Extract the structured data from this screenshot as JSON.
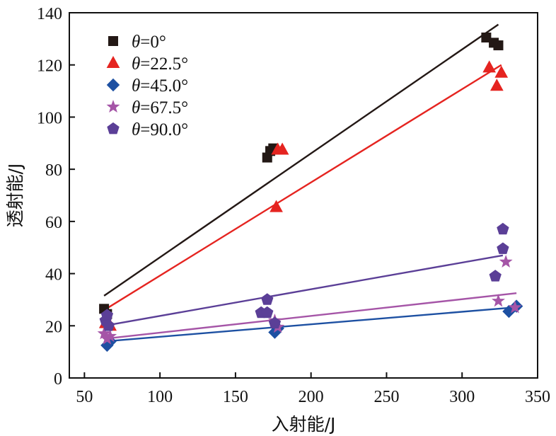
{
  "chart_data": {
    "type": "scatter",
    "xlabel": "入射能/J",
    "ylabel": "透射能/J",
    "xlim": [
      40,
      350
    ],
    "ylim": [
      0,
      140
    ],
    "x_ticks": [
      50,
      100,
      150,
      200,
      250,
      300,
      350
    ],
    "y_ticks": [
      0,
      20,
      40,
      60,
      80,
      100,
      120,
      140
    ],
    "grid": false,
    "legend_position": "top-left",
    "series": [
      {
        "name": "θ=0°",
        "legend_symbol": "θ",
        "legend_value": "=0°",
        "marker": "square",
        "color": "#231815",
        "points": [
          [
            63,
            26.5
          ],
          [
            65,
            24.5
          ],
          [
            171,
            84.5
          ],
          [
            173,
            87
          ],
          [
            175,
            88
          ],
          [
            316,
            130.5
          ],
          [
            321,
            128.5
          ],
          [
            324,
            127.5
          ]
        ],
        "fit_line": [
          [
            63,
            31.5
          ],
          [
            324,
            135.5
          ]
        ]
      },
      {
        "name": "θ=22.5°",
        "legend_symbol": "θ",
        "legend_value": "=22.5°",
        "marker": "triangle",
        "color": "#e52420",
        "points": [
          [
            64,
            21
          ],
          [
            67,
            20
          ],
          [
            177,
            65.5
          ],
          [
            178,
            87.5
          ],
          [
            181,
            87.5
          ],
          [
            318,
            119
          ],
          [
            323,
            112
          ],
          [
            326,
            117
          ]
        ],
        "fit_line": [
          [
            63,
            26
          ],
          [
            326,
            120
          ]
        ]
      },
      {
        "name": "θ=45.0°",
        "legend_symbol": "θ",
        "legend_value": "=45.0°",
        "marker": "diamond",
        "color": "#1d50a2",
        "points": [
          [
            65,
            12.5
          ],
          [
            67,
            14
          ],
          [
            176,
            17.5
          ],
          [
            178,
            19
          ],
          [
            331,
            25.5
          ],
          [
            336,
            27.5
          ]
        ],
        "fit_line": [
          [
            63,
            14
          ],
          [
            334,
            27
          ]
        ]
      },
      {
        "name": "θ=67.5°",
        "legend_symbol": "θ",
        "legend_value": "=67.5°",
        "marker": "star",
        "color": "#a555a7",
        "points": [
          [
            63,
            17
          ],
          [
            65,
            15
          ],
          [
            67,
            16
          ],
          [
            176,
            22
          ],
          [
            178,
            19.5
          ],
          [
            324,
            29.5
          ],
          [
            329,
            44.5
          ],
          [
            335,
            27
          ]
        ],
        "fit_line": [
          [
            63,
            15
          ],
          [
            336,
            32.5
          ]
        ]
      },
      {
        "name": "θ=90.0°",
        "legend_symbol": "θ",
        "legend_value": "=90.0°",
        "marker": "pentagon",
        "color": "#5b3f97",
        "points": [
          [
            64,
            22
          ],
          [
            65,
            24
          ],
          [
            66,
            20
          ],
          [
            167,
            25
          ],
          [
            171,
            25
          ],
          [
            171,
            30
          ],
          [
            176,
            21
          ],
          [
            322,
            39
          ],
          [
            327,
            57
          ],
          [
            327,
            49.5
          ]
        ],
        "fit_line": [
          [
            63,
            20
          ],
          [
            327,
            47
          ]
        ]
      }
    ]
  }
}
